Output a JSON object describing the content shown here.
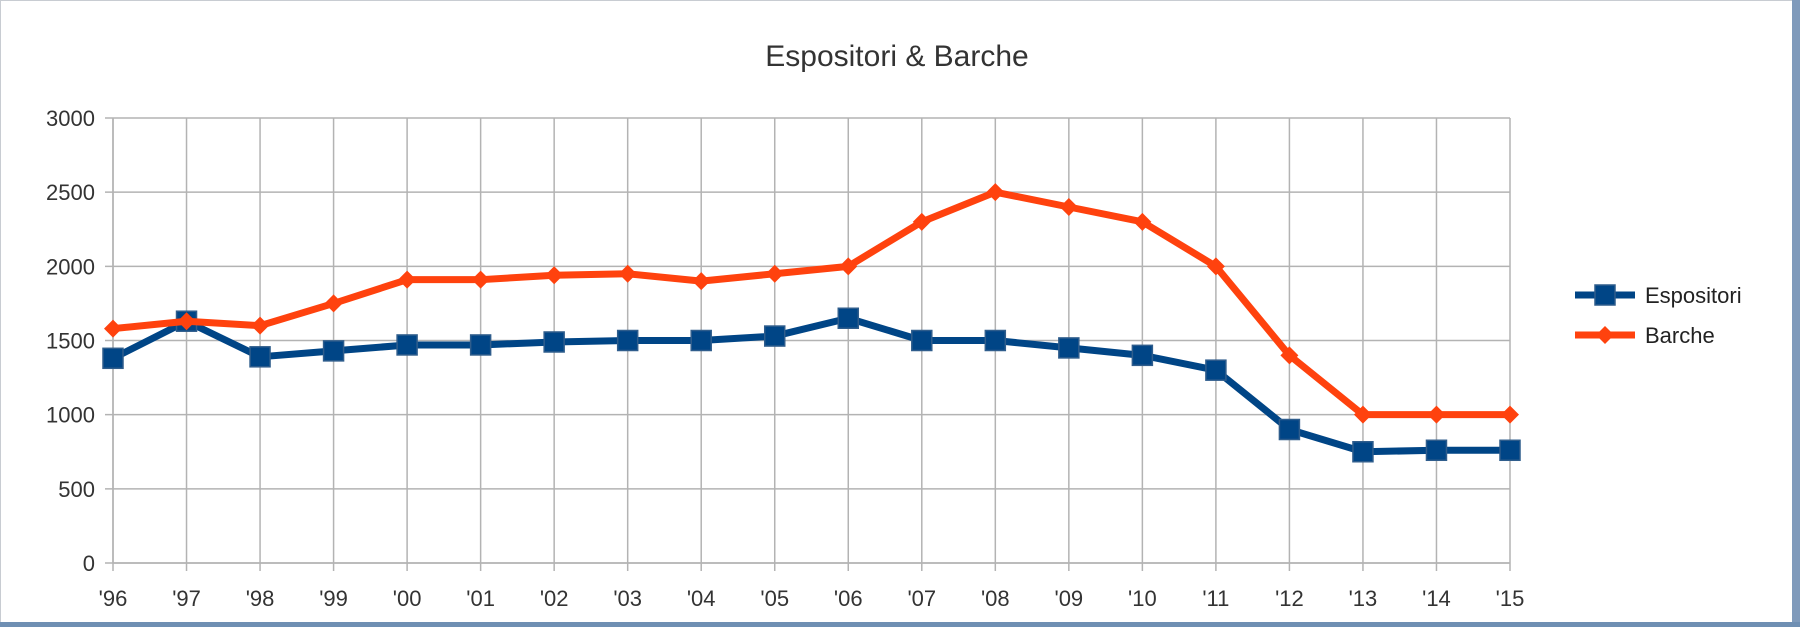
{
  "chart_data": {
    "type": "line",
    "title": "Espositori & Barche",
    "xlabel": "",
    "ylabel": "",
    "categories": [
      "'96",
      "'97",
      "'98",
      "'99",
      "'00",
      "'01",
      "'02",
      "'03",
      "'04",
      "'05",
      "'06",
      "'07",
      "'08",
      "'09",
      "'10",
      "'11",
      "'12",
      "'13",
      "'14",
      "'15"
    ],
    "ylim": [
      0,
      3000
    ],
    "yticks": [
      "0",
      "500",
      "1000",
      "1500",
      "2000",
      "2500",
      "3000"
    ],
    "grid": true,
    "legend_position": "right",
    "series": [
      {
        "name": "Espositori",
        "color": "#004586",
        "marker": "square",
        "values": [
          1380,
          1630,
          1390,
          1430,
          1470,
          1470,
          1490,
          1500,
          1500,
          1530,
          1650,
          1500,
          1500,
          1450,
          1400,
          1300,
          900,
          750,
          760,
          760
        ]
      },
      {
        "name": "Barche",
        "color": "#ff420e",
        "marker": "diamond",
        "values": [
          1580,
          1630,
          1600,
          1750,
          1910,
          1910,
          1940,
          1950,
          1900,
          1950,
          2000,
          2300,
          2500,
          2400,
          2300,
          2000,
          1400,
          1000,
          1000,
          1000
        ]
      }
    ]
  }
}
